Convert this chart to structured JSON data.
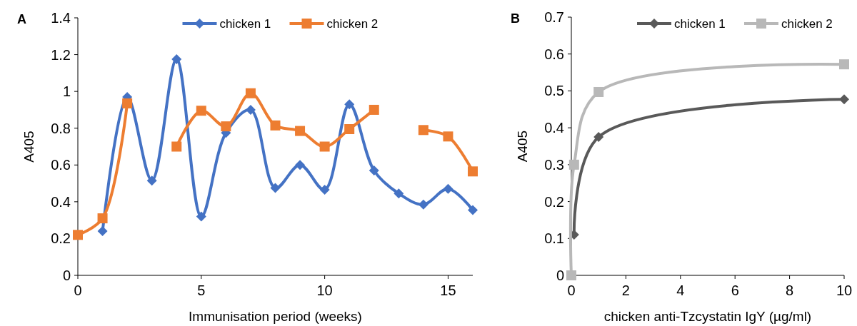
{
  "chart_data": [
    {
      "type": "line",
      "title": "A",
      "xlabel": "Immunisation period (weeks)",
      "ylabel": "A405",
      "x": [
        0,
        1,
        2,
        3,
        4,
        5,
        6,
        7,
        8,
        9,
        10,
        11,
        12,
        13,
        14,
        15,
        16
      ],
      "xlim": [
        0,
        16
      ],
      "xticks": [
        0,
        5,
        10,
        15
      ],
      "ylim": [
        0,
        1.4
      ],
      "yticks": [
        0,
        0.2,
        0.4,
        0.6,
        0.8,
        1,
        1.2,
        1.4
      ],
      "legend": "top",
      "grid": false,
      "series": [
        {
          "name": "chicken 1",
          "color": "#4472c4",
          "marker": "diamond",
          "values": [
            null,
            0.24,
            0.97,
            0.515,
            1.175,
            0.32,
            0.775,
            0.9,
            0.475,
            0.6,
            0.465,
            0.93,
            0.57,
            0.445,
            0.385,
            0.47,
            0.355
          ]
        },
        {
          "name": "chicken 2",
          "color": "#ed7d31",
          "marker": "square",
          "values": [
            0.22,
            0.31,
            0.935,
            null,
            0.7,
            0.895,
            0.81,
            0.99,
            0.815,
            0.785,
            0.7,
            0.795,
            0.9,
            null,
            0.79,
            0.755,
            0.565
          ]
        }
      ]
    },
    {
      "type": "line",
      "title": "B",
      "xlabel": "chicken anti-Tzcystatin IgY (µg/ml)",
      "ylabel": "A405",
      "x": [
        0,
        0.1,
        1,
        10
      ],
      "xlim": [
        0,
        10
      ],
      "xticks": [
        0,
        2,
        4,
        6,
        8,
        10
      ],
      "ylim": [
        0,
        0.7
      ],
      "yticks": [
        0,
        0.1,
        0.2,
        0.3,
        0.4,
        0.5,
        0.6,
        0.7
      ],
      "legend": "top right",
      "grid": false,
      "series": [
        {
          "name": "chicken 1",
          "color": "#595959",
          "marker": "diamond",
          "values": [
            null,
            0.11,
            0.375,
            0.477
          ]
        },
        {
          "name": "chicken 2",
          "color": "#b8b8b8",
          "marker": "square",
          "values": [
            0,
            0.3,
            0.497,
            0.572
          ]
        }
      ]
    }
  ]
}
